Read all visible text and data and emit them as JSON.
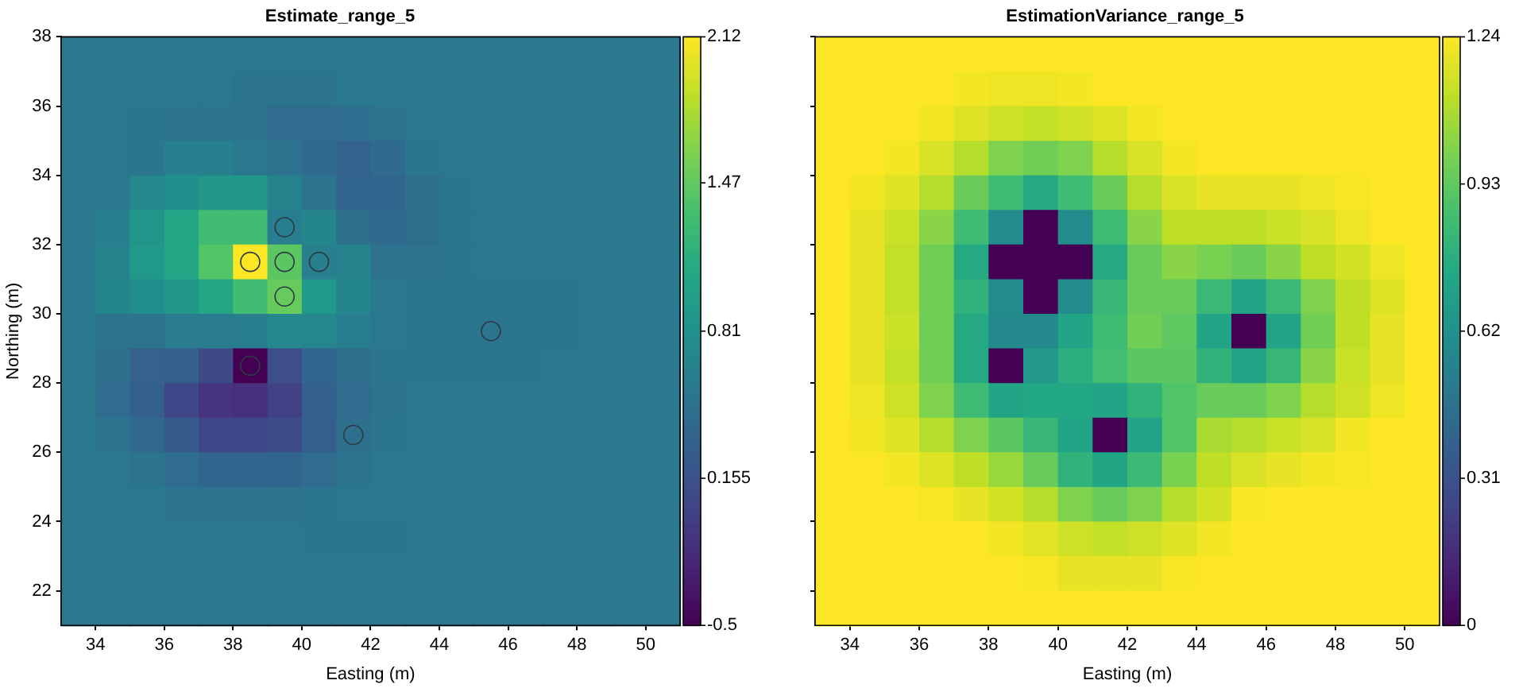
{
  "chart_data": [
    {
      "type": "heatmap",
      "title": "Estimate_range_5",
      "xlabel": "Easting (m)",
      "ylabel": "Northing (m)",
      "cells": [
        [
          0.55,
          0.55,
          0.55,
          0.55,
          0.55,
          0.55,
          0.55,
          0.55,
          0.55,
          0.55,
          0.55,
          0.55,
          0.55,
          0.55,
          0.55,
          0.55,
          0.55,
          0.55
        ],
        [
          0.55,
          0.55,
          0.55,
          0.55,
          0.55,
          0.5,
          0.5,
          0.5,
          0.55,
          0.55,
          0.55,
          0.55,
          0.55,
          0.55,
          0.55,
          0.55,
          0.55,
          0.55
        ],
        [
          0.55,
          0.55,
          0.52,
          0.5,
          0.5,
          0.48,
          0.42,
          0.42,
          0.44,
          0.5,
          0.55,
          0.55,
          0.55,
          0.55,
          0.55,
          0.55,
          0.55,
          0.55
        ],
        [
          0.55,
          0.55,
          0.52,
          0.62,
          0.62,
          0.55,
          0.48,
          0.4,
          0.33,
          0.4,
          0.52,
          0.55,
          0.55,
          0.55,
          0.55,
          0.55,
          0.55,
          0.55
        ],
        [
          0.55,
          0.55,
          0.72,
          0.8,
          0.88,
          0.88,
          0.65,
          0.5,
          0.35,
          0.35,
          0.45,
          0.52,
          0.55,
          0.55,
          0.55,
          0.55,
          0.55,
          0.55
        ],
        [
          0.55,
          0.62,
          0.86,
          1.05,
          1.3,
          1.3,
          0.6,
          0.68,
          0.45,
          0.4,
          0.45,
          0.52,
          0.55,
          0.55,
          0.55,
          0.55,
          0.55,
          0.55
        ],
        [
          0.55,
          0.65,
          0.9,
          1.05,
          1.4,
          2.12,
          1.45,
          0.62,
          0.65,
          0.48,
          0.48,
          0.52,
          0.55,
          0.55,
          0.55,
          0.55,
          0.55,
          0.55
        ],
        [
          0.55,
          0.68,
          0.78,
          0.88,
          1.05,
          1.3,
          1.5,
          0.9,
          0.68,
          0.55,
          0.52,
          0.52,
          0.52,
          0.52,
          0.52,
          0.55,
          0.55,
          0.55
        ],
        [
          0.55,
          0.5,
          0.5,
          0.58,
          0.58,
          0.6,
          0.72,
          0.7,
          0.6,
          0.55,
          0.52,
          0.52,
          0.52,
          0.52,
          0.52,
          0.55,
          0.55,
          0.55
        ],
        [
          0.55,
          0.45,
          0.32,
          0.3,
          0.08,
          -0.5,
          0.12,
          0.35,
          0.45,
          0.52,
          0.52,
          0.52,
          0.52,
          0.52,
          0.55,
          0.55,
          0.55,
          0.55
        ],
        [
          0.55,
          0.42,
          0.3,
          0.05,
          -0.1,
          -0.15,
          0,
          0.3,
          0.42,
          0.5,
          0.55,
          0.55,
          0.55,
          0.55,
          0.55,
          0.55,
          0.55,
          0.55
        ],
        [
          0.55,
          0.48,
          0.38,
          0.25,
          0.05,
          0.05,
          0.1,
          0.3,
          0.45,
          0.52,
          0.55,
          0.55,
          0.55,
          0.55,
          0.55,
          0.55,
          0.55,
          0.55
        ],
        [
          0.55,
          0.55,
          0.5,
          0.42,
          0.35,
          0.35,
          0.35,
          0.42,
          0.5,
          0.55,
          0.55,
          0.55,
          0.55,
          0.55,
          0.55,
          0.55,
          0.55,
          0.55
        ],
        [
          0.55,
          0.55,
          0.55,
          0.5,
          0.48,
          0.48,
          0.5,
          0.52,
          0.55,
          0.55,
          0.55,
          0.55,
          0.55,
          0.55,
          0.55,
          0.55,
          0.55,
          0.55
        ],
        [
          0.55,
          0.55,
          0.55,
          0.55,
          0.55,
          0.55,
          0.55,
          0.53,
          0.53,
          0.53,
          0.55,
          0.55,
          0.55,
          0.55,
          0.55,
          0.55,
          0.55,
          0.55
        ],
        [
          0.55,
          0.55,
          0.55,
          0.55,
          0.55,
          0.55,
          0.55,
          0.55,
          0.55,
          0.55,
          0.55,
          0.55,
          0.55,
          0.55,
          0.55,
          0.55,
          0.55,
          0.55
        ],
        [
          0.55,
          0.55,
          0.55,
          0.55,
          0.55,
          0.55,
          0.55,
          0.55,
          0.55,
          0.55,
          0.55,
          0.55,
          0.55,
          0.55,
          0.55,
          0.55,
          0.55,
          0.55
        ]
      ],
      "xlim": [
        33,
        51
      ],
      "ylim": [
        21,
        38
      ],
      "xticks": [
        34,
        36,
        38,
        40,
        42,
        44,
        46,
        48,
        50
      ],
      "yticks": [
        22,
        24,
        26,
        28,
        30,
        32,
        34,
        36,
        38
      ],
      "clim": [
        -0.5,
        2.12
      ],
      "cticks": [
        -0.5,
        0.155,
        0.81,
        1.47,
        2.12
      ],
      "grid": false,
      "marker": "circle",
      "series": [
        {
          "type": "scatter",
          "x": [
            38.5,
            39.5,
            39.5,
            39.5,
            40.5,
            45.5,
            41.5,
            38.5
          ],
          "values": [
            31.5,
            31.5,
            32.5,
            30.5,
            31.5,
            29.5,
            26.5,
            28.5
          ],
          "color": "#2b3a44"
        }
      ]
    },
    {
      "type": "heatmap",
      "title": "EstimationVariance_range_5",
      "xlabel": "Easting (m)",
      "cells": [
        [
          1.24,
          1.24,
          1.24,
          1.24,
          1.24,
          1.24,
          1.24,
          1.24,
          1.24,
          1.24,
          1.24,
          1.24,
          1.24,
          1.24,
          1.24,
          1.24,
          1.24,
          1.24
        ],
        [
          1.24,
          1.24,
          1.24,
          1.24,
          1.22,
          1.21,
          1.21,
          1.22,
          1.24,
          1.24,
          1.24,
          1.24,
          1.24,
          1.24,
          1.24,
          1.24,
          1.24,
          1.24
        ],
        [
          1.24,
          1.24,
          1.24,
          1.22,
          1.18,
          1.15,
          1.13,
          1.15,
          1.18,
          1.22,
          1.24,
          1.24,
          1.24,
          1.24,
          1.24,
          1.24,
          1.24,
          1.24
        ],
        [
          1.24,
          1.24,
          1.22,
          1.17,
          1.1,
          1.0,
          0.97,
          1.0,
          1.1,
          1.17,
          1.22,
          1.24,
          1.24,
          1.24,
          1.24,
          1.24,
          1.24,
          1.24
        ],
        [
          1.24,
          1.22,
          1.18,
          1.1,
          0.96,
          0.85,
          0.75,
          0.85,
          0.96,
          1.1,
          1.17,
          1.2,
          1.2,
          1.2,
          1.21,
          1.23,
          1.24,
          1.24
        ],
        [
          1.24,
          1.2,
          1.14,
          1.02,
          0.85,
          0.6,
          0,
          0.6,
          0.85,
          1.02,
          1.12,
          1.12,
          1.12,
          1.14,
          1.17,
          1.21,
          1.24,
          1.24
        ],
        [
          1.24,
          1.2,
          1.13,
          0.97,
          0.75,
          0,
          0,
          0,
          0.75,
          0.95,
          1.02,
          0.99,
          0.96,
          1.02,
          1.12,
          1.16,
          1.21,
          1.24
        ],
        [
          1.24,
          1.2,
          1.13,
          0.97,
          0.8,
          0.6,
          0,
          0.6,
          0.82,
          0.95,
          0.95,
          0.83,
          0.72,
          0.83,
          1.0,
          1.12,
          1.18,
          1.24
        ],
        [
          1.24,
          1.2,
          1.14,
          0.97,
          0.75,
          0.58,
          0.58,
          0.72,
          0.85,
          0.97,
          0.93,
          0.72,
          0,
          0.72,
          0.97,
          1.12,
          1.2,
          1.24
        ],
        [
          1.24,
          1.2,
          1.13,
          0.97,
          0.75,
          0,
          0.66,
          0.78,
          0.86,
          0.92,
          0.92,
          0.8,
          0.72,
          0.82,
          1.02,
          1.14,
          1.2,
          1.24
        ],
        [
          1.24,
          1.21,
          1.15,
          1.0,
          0.85,
          0.72,
          0.74,
          0.74,
          0.72,
          0.8,
          0.9,
          0.95,
          0.95,
          1.0,
          1.1,
          1.15,
          1.21,
          1.24
        ],
        [
          1.24,
          1.22,
          1.18,
          1.1,
          1.0,
          0.92,
          0.82,
          0.72,
          0,
          0.72,
          0.9,
          1.08,
          1.1,
          1.14,
          1.17,
          1.22,
          1.24,
          1.24
        ],
        [
          1.24,
          1.24,
          1.22,
          1.18,
          1.12,
          1.05,
          0.95,
          0.8,
          0.73,
          0.84,
          0.99,
          1.12,
          1.17,
          1.2,
          1.22,
          1.23,
          1.24,
          1.24
        ],
        [
          1.24,
          1.24,
          1.24,
          1.23,
          1.2,
          1.16,
          1.1,
          1.0,
          0.95,
          1.0,
          1.1,
          1.16,
          1.23,
          1.24,
          1.24,
          1.24,
          1.24,
          1.24
        ],
        [
          1.24,
          1.24,
          1.24,
          1.24,
          1.24,
          1.22,
          1.19,
          1.15,
          1.13,
          1.15,
          1.18,
          1.22,
          1.24,
          1.24,
          1.24,
          1.24,
          1.24,
          1.24
        ],
        [
          1.24,
          1.24,
          1.24,
          1.24,
          1.24,
          1.24,
          1.23,
          1.2,
          1.2,
          1.2,
          1.23,
          1.24,
          1.24,
          1.24,
          1.24,
          1.24,
          1.24,
          1.24
        ],
        [
          1.24,
          1.24,
          1.24,
          1.24,
          1.24,
          1.24,
          1.24,
          1.24,
          1.24,
          1.24,
          1.24,
          1.24,
          1.24,
          1.24,
          1.24,
          1.24,
          1.24,
          1.24
        ]
      ],
      "xlim": [
        33,
        51
      ],
      "ylim": [
        21,
        38
      ],
      "xticks": [
        34,
        36,
        38,
        40,
        42,
        44,
        46,
        48,
        50
      ],
      "yticks": [
        22,
        24,
        26,
        28,
        30,
        32,
        34,
        36,
        38
      ],
      "clim": [
        0,
        1.24
      ],
      "cticks": [
        0,
        0.31,
        0.62,
        0.93,
        1.24
      ],
      "grid": false,
      "tick_labels": "x"
    }
  ]
}
